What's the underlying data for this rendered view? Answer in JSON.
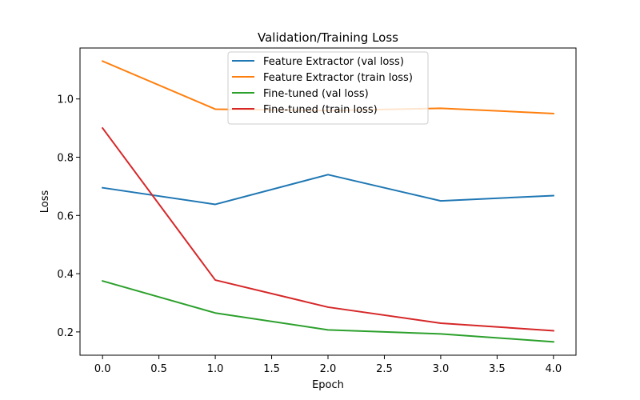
{
  "chart_data": {
    "type": "line",
    "title": "Validation/Training Loss",
    "xlabel": "Epoch",
    "ylabel": "Loss",
    "xlim": [
      -0.2,
      4.2
    ],
    "ylim": [
      0.12,
      1.175
    ],
    "x_ticks": [
      0.0,
      0.5,
      1.0,
      1.5,
      2.0,
      2.5,
      3.0,
      3.5,
      4.0
    ],
    "x_tick_labels": [
      "0.0",
      "0.5",
      "1.0",
      "1.5",
      "2.0",
      "2.5",
      "3.0",
      "3.5",
      "4.0"
    ],
    "y_ticks": [
      0.2,
      0.4,
      0.6,
      0.8,
      1.0
    ],
    "y_tick_labels": [
      "0.2",
      "0.4",
      "0.6",
      "0.8",
      "1.0"
    ],
    "grid": false,
    "legend_position": "top-center",
    "x": [
      0,
      1,
      2,
      3,
      4
    ],
    "series": [
      {
        "name": "Feature Extractor (val loss)",
        "color": "#1f77b4",
        "values": [
          0.695,
          0.638,
          0.74,
          0.65,
          0.668
        ]
      },
      {
        "name": "Feature Extractor (train loss)",
        "color": "#ff7f0e",
        "values": [
          1.13,
          0.965,
          0.96,
          0.968,
          0.95
        ]
      },
      {
        "name": "Fine-tuned (val loss)",
        "color": "#2ca02c",
        "values": [
          0.375,
          0.265,
          0.207,
          0.193,
          0.166
        ]
      },
      {
        "name": "Fine-tuned (train loss)",
        "color": "#d62728",
        "values": [
          0.9,
          0.378,
          0.285,
          0.23,
          0.204
        ]
      }
    ]
  }
}
